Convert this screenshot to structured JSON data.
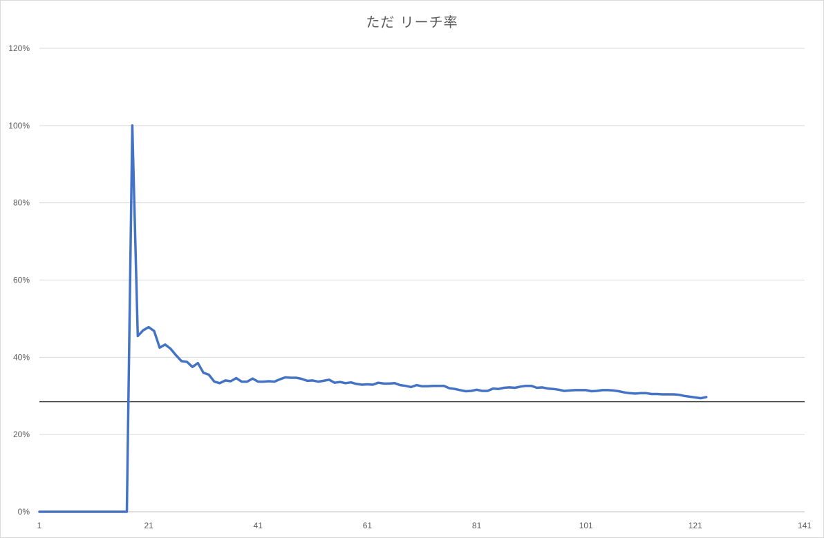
{
  "chart_data": {
    "type": "line",
    "title": "ただ リーチ率",
    "xlabel": "",
    "ylabel": "",
    "xlim": [
      1,
      141
    ],
    "ylim": [
      0,
      1.2
    ],
    "x_ticks": [
      "1",
      "21",
      "41",
      "61",
      "81",
      "101",
      "121",
      "141"
    ],
    "y_ticks": [
      "0%",
      "20%",
      "40%",
      "60%",
      "80%",
      "100%",
      "120%"
    ],
    "grid": true,
    "legend": "none",
    "reference_line": {
      "y": 0.285,
      "color": "#404040"
    },
    "series": [
      {
        "color": "#4472c4",
        "x": [
          1,
          2,
          3,
          4,
          5,
          6,
          7,
          8,
          9,
          10,
          11,
          12,
          13,
          14,
          15,
          16,
          17,
          18,
          19,
          20,
          21,
          22,
          23,
          24,
          25,
          26,
          27,
          28,
          29,
          30,
          31,
          32,
          33,
          34,
          35,
          36,
          37,
          38,
          39,
          40,
          41,
          42,
          43,
          44,
          45,
          46,
          47,
          48,
          49,
          50,
          51,
          52,
          53,
          54,
          55,
          56,
          57,
          58,
          59,
          60,
          61,
          62,
          63,
          64,
          65,
          66,
          67,
          68,
          69,
          70,
          71,
          72,
          73,
          74,
          75,
          76,
          77,
          78,
          79,
          80,
          81,
          82,
          83,
          84,
          85,
          86,
          87,
          88,
          89,
          90,
          91,
          92,
          93,
          94,
          95,
          96,
          97,
          98,
          99,
          100,
          101,
          102,
          103,
          104,
          105,
          106,
          107,
          108,
          109,
          110,
          111,
          112,
          113,
          114,
          115,
          116,
          117,
          118,
          119,
          120,
          121,
          122,
          123
        ],
        "values": [
          0,
          0,
          0,
          0,
          0,
          0,
          0,
          0,
          0,
          0,
          0,
          0,
          0,
          0,
          0,
          0,
          0,
          1.0,
          0.455,
          0.47,
          0.478,
          0.468,
          0.425,
          0.433,
          0.422,
          0.405,
          0.39,
          0.388,
          0.375,
          0.385,
          0.36,
          0.355,
          0.337,
          0.333,
          0.34,
          0.338,
          0.346,
          0.337,
          0.337,
          0.345,
          0.337,
          0.337,
          0.338,
          0.337,
          0.343,
          0.348,
          0.347,
          0.347,
          0.344,
          0.339,
          0.34,
          0.337,
          0.339,
          0.342,
          0.334,
          0.336,
          0.333,
          0.335,
          0.331,
          0.329,
          0.33,
          0.329,
          0.334,
          0.332,
          0.332,
          0.333,
          0.328,
          0.326,
          0.323,
          0.328,
          0.325,
          0.325,
          0.326,
          0.326,
          0.326,
          0.32,
          0.318,
          0.315,
          0.312,
          0.313,
          0.316,
          0.313,
          0.313,
          0.319,
          0.318,
          0.321,
          0.322,
          0.321,
          0.324,
          0.326,
          0.326,
          0.321,
          0.322,
          0.319,
          0.318,
          0.316,
          0.313,
          0.314,
          0.315,
          0.315,
          0.315,
          0.312,
          0.313,
          0.315,
          0.315,
          0.314,
          0.312,
          0.309,
          0.307,
          0.306,
          0.307,
          0.307,
          0.305,
          0.305,
          0.304,
          0.304,
          0.304,
          0.303,
          0.3,
          0.298,
          0.296,
          0.294,
          0.297
        ]
      }
    ]
  }
}
